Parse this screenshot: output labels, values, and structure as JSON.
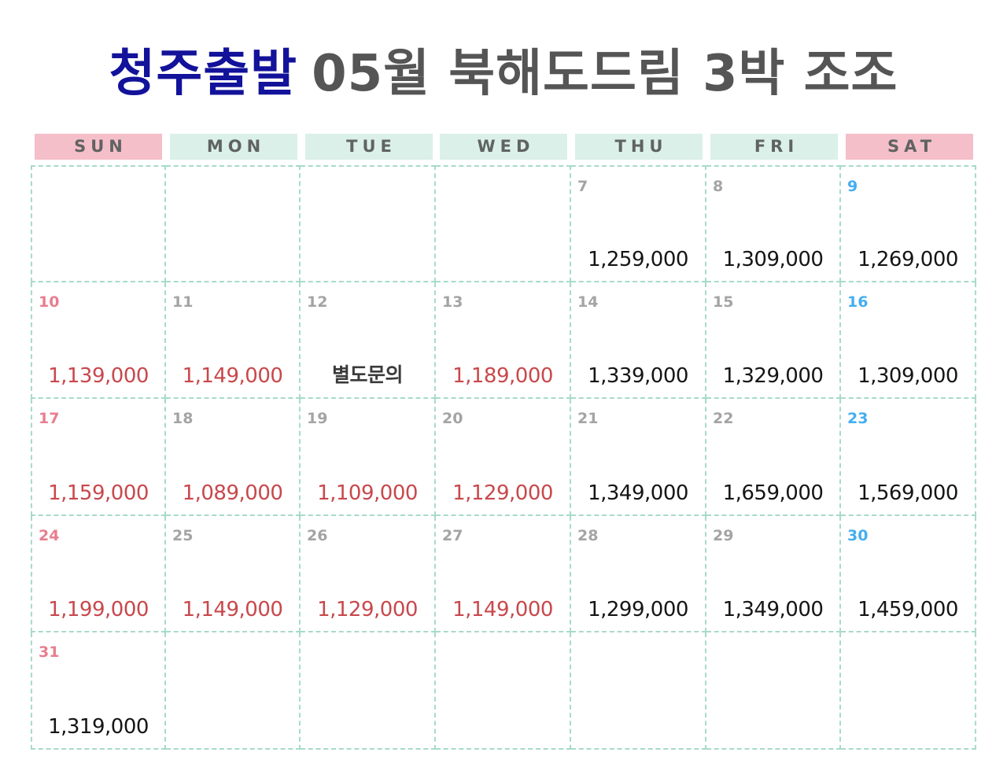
{
  "title": {
    "accent": "청주출발",
    "rest": "05월 북해도드림 3박 조조"
  },
  "weekdays": [
    "SUN",
    "MON",
    "TUE",
    "WED",
    "THU",
    "FRI",
    "SAT"
  ],
  "colors": {
    "title_accent": "#12129a",
    "title_rest": "#555555",
    "weekend_header": "#f5bfca",
    "weekday_header": "#dbf0e9",
    "grid_line": "#a7dbc9",
    "sunday_number": "#e77e8f",
    "saturday_number": "#45aef0",
    "weekday_number": "#a4a4a4",
    "low_price": "#c8484c",
    "regular_price": "#151515"
  },
  "weeks": [
    [
      null,
      null,
      null,
      null,
      {
        "day": "7",
        "price": "1,259,000",
        "tone": "black"
      },
      {
        "day": "8",
        "price": "1,309,000",
        "tone": "black"
      },
      {
        "day": "9",
        "price": "1,269,000",
        "tone": "black"
      }
    ],
    [
      {
        "day": "10",
        "price": "1,139,000",
        "tone": "red"
      },
      {
        "day": "11",
        "price": "1,149,000",
        "tone": "red"
      },
      {
        "day": "12",
        "price": "별도문의",
        "tone": "note"
      },
      {
        "day": "13",
        "price": "1,189,000",
        "tone": "red"
      },
      {
        "day": "14",
        "price": "1,339,000",
        "tone": "black"
      },
      {
        "day": "15",
        "price": "1,329,000",
        "tone": "black"
      },
      {
        "day": "16",
        "price": "1,309,000",
        "tone": "black"
      }
    ],
    [
      {
        "day": "17",
        "price": "1,159,000",
        "tone": "red"
      },
      {
        "day": "18",
        "price": "1,089,000",
        "tone": "red"
      },
      {
        "day": "19",
        "price": "1,109,000",
        "tone": "red"
      },
      {
        "day": "20",
        "price": "1,129,000",
        "tone": "red"
      },
      {
        "day": "21",
        "price": "1,349,000",
        "tone": "black"
      },
      {
        "day": "22",
        "price": "1,659,000",
        "tone": "black"
      },
      {
        "day": "23",
        "price": "1,569,000",
        "tone": "black"
      }
    ],
    [
      {
        "day": "24",
        "price": "1,199,000",
        "tone": "red"
      },
      {
        "day": "25",
        "price": "1,149,000",
        "tone": "red"
      },
      {
        "day": "26",
        "price": "1,129,000",
        "tone": "red"
      },
      {
        "day": "27",
        "price": "1,149,000",
        "tone": "red"
      },
      {
        "day": "28",
        "price": "1,299,000",
        "tone": "black"
      },
      {
        "day": "29",
        "price": "1,349,000",
        "tone": "black"
      },
      {
        "day": "30",
        "price": "1,459,000",
        "tone": "black"
      }
    ],
    [
      {
        "day": "31",
        "price": "1,319,000",
        "tone": "black"
      },
      null,
      null,
      null,
      null,
      null,
      null
    ]
  ]
}
